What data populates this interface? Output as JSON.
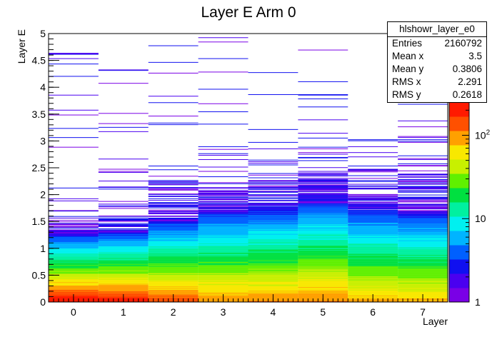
{
  "chart_data": {
    "type": "heatmap",
    "title": "Layer E Arm 0",
    "xlabel": "Layer",
    "ylabel": "Layer E",
    "xlim": [
      -0.5,
      7.5
    ],
    "ylim": [
      0,
      5
    ],
    "x_ticks": [
      "0",
      "1",
      "2",
      "3",
      "4",
      "5",
      "6",
      "7"
    ],
    "y_ticks": [
      "0",
      "0.5",
      "1",
      "1.5",
      "2",
      "2.5",
      "3",
      "3.5",
      "4",
      "4.5",
      "5"
    ],
    "z_scale": "log",
    "zlim": [
      1,
      250
    ],
    "z_ticks": [
      "1",
      "10",
      "10^2"
    ],
    "palette": [
      "#7a00e6",
      "#4a00f0",
      "#1010f0",
      "#0060ff",
      "#00b4ff",
      "#00f0f0",
      "#00f0a0",
      "#00e040",
      "#60f000",
      "#c8f000",
      "#f8e800",
      "#ffa000",
      "#ff5000",
      "#ff1a00"
    ],
    "description_of_distribution": "Counts concentrated at low Layer E (0-0.3) for every layer bin, decaying with energy; higher layers extend to larger E values",
    "approx_counts_at_E0": [
      250,
      220,
      150,
      110,
      110,
      120,
      90,
      80
    ],
    "decay_length": [
      0.28,
      0.3,
      0.38,
      0.46,
      0.48,
      0.5,
      0.5,
      0.5
    ],
    "max_E_reached": [
      4.65,
      4.5,
      5.0,
      4.95,
      4.6,
      4.95,
      3.6,
      3.7
    ],
    "stats": {
      "name": "hlshowr_layer_e0",
      "rows": [
        {
          "label": "Entries",
          "value": "2160792"
        },
        {
          "label": "Mean x",
          "value": "3.5"
        },
        {
          "label": "Mean y",
          "value": "0.3806"
        },
        {
          "label": "RMS x",
          "value": "2.291"
        },
        {
          "label": "RMS y",
          "value": "0.2618"
        }
      ]
    }
  }
}
